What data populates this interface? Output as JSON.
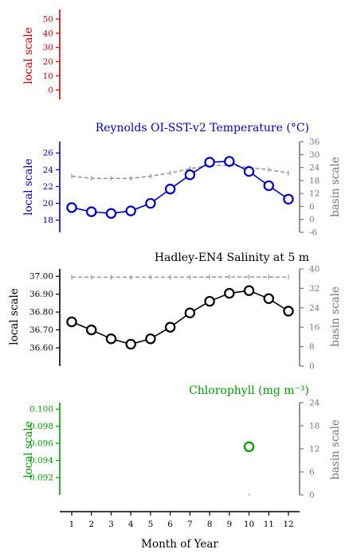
{
  "chart_data": {
    "type": "line",
    "x": [
      1,
      2,
      3,
      4,
      5,
      6,
      7,
      8,
      9,
      10,
      11,
      12
    ],
    "x_ticks": [
      "1",
      "2",
      "3",
      "4",
      "5",
      "6",
      "7",
      "8",
      "9",
      "10",
      "11",
      "12"
    ],
    "xlabel": "Month of Year",
    "panels": [
      {
        "title": "",
        "color": "#cc0000",
        "local_label": "local scale",
        "basin_label": "",
        "local_ticks": [
          "50",
          "40",
          "30",
          "20",
          "10",
          "0"
        ],
        "local_tick_values": [
          50,
          40,
          30,
          20,
          10,
          0
        ],
        "local_ylim": [
          -5,
          55
        ],
        "basin_ticks": [],
        "basin_tick_values": [],
        "basin_ylim": [
          0,
          1
        ],
        "local_series": [],
        "basin_series": []
      },
      {
        "title": "Reynolds OI-SST-v2 Temperature (°C)",
        "color": "#0000bb",
        "local_label": "local scale",
        "basin_label": "basin scale",
        "local_ticks": [
          "26",
          "24",
          "22",
          "20",
          "18"
        ],
        "local_tick_values": [
          26,
          24,
          22,
          20,
          18
        ],
        "local_ylim": [
          17.4,
          26.4
        ],
        "basin_ticks": [
          "36",
          "30",
          "24",
          "18",
          "12",
          "6",
          "0",
          "-6"
        ],
        "basin_tick_values": [
          36,
          30,
          24,
          18,
          12,
          6,
          0,
          -6
        ],
        "basin_ylim": [
          -6,
          36
        ],
        "local_series": [
          19.5,
          19.0,
          18.8,
          19.1,
          20.0,
          21.7,
          23.4,
          24.9,
          25.0,
          23.8,
          22.1,
          20.5
        ],
        "basin_series": [
          20.0,
          19.0,
          19.0,
          19.0,
          20.0,
          21.5,
          23.5,
          25.0,
          25.0,
          24.0,
          23.0,
          21.5
        ]
      },
      {
        "title": "Hadley-EN4 Salinity at 5 m",
        "color": "#000000",
        "local_label": "local scale",
        "basin_label": "basin scale",
        "local_ticks": [
          "37.00",
          "36.90",
          "36.80",
          "36.70",
          "36.60"
        ],
        "local_tick_values": [
          37.0,
          36.9,
          36.8,
          36.7,
          36.6
        ],
        "local_ylim": [
          36.56,
          37.01
        ],
        "basin_ticks": [
          "40",
          "32",
          "24",
          "16",
          "8",
          "0"
        ],
        "basin_tick_values": [
          40,
          32,
          24,
          16,
          8,
          0
        ],
        "basin_ylim": [
          0,
          40
        ],
        "local_series": [
          36.745,
          36.7,
          36.65,
          36.62,
          36.65,
          36.715,
          36.795,
          36.86,
          36.905,
          36.92,
          36.875,
          36.805
        ],
        "basin_series": [
          36.6,
          36.6,
          36.6,
          36.6,
          36.6,
          36.6,
          36.6,
          36.65,
          36.7,
          36.7,
          36.65,
          36.6
        ]
      },
      {
        "title": "Chlorophyll (mg m⁻³)",
        "color": "#009900",
        "local_label": "local scale",
        "basin_label": "basin scale",
        "local_ticks": [
          "0.100",
          "0.098",
          "0.096",
          "0.094",
          "0.092"
        ],
        "local_tick_values": [
          0.1,
          0.098,
          0.096,
          0.094,
          0.092
        ],
        "local_ylim": [
          0.0908,
          0.1003
        ],
        "basin_ticks": [
          "24",
          "18",
          "12",
          "6",
          "0"
        ],
        "basin_tick_values": [
          24,
          18,
          12,
          6,
          0
        ],
        "basin_ylim": [
          0,
          24
        ],
        "local_series": [
          null,
          null,
          null,
          null,
          null,
          null,
          null,
          null,
          null,
          0.0956,
          null,
          null
        ],
        "basin_series": [
          null,
          null,
          null,
          null,
          null,
          null,
          null,
          null,
          null,
          0.1,
          null,
          null
        ]
      }
    ]
  }
}
